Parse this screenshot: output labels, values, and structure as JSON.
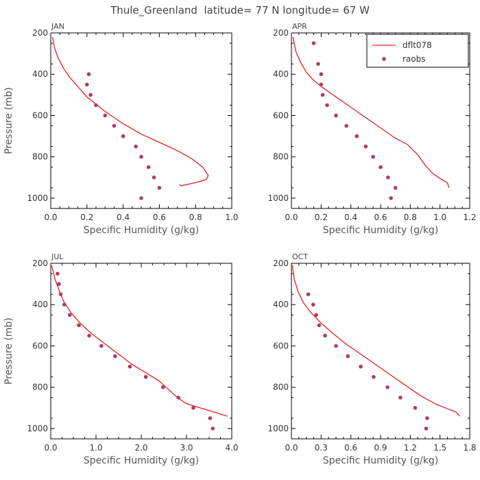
{
  "page_title": "Thule_Greenland  latitude= 77 N longitude= 67 W",
  "colors": {
    "model_line": "#e0201b",
    "obs_marker": "#b03a64",
    "frame": "#000000"
  },
  "legend": {
    "model": "dflt078",
    "obs": "raobs"
  },
  "chart_data": [
    {
      "type": "line",
      "title": "JAN",
      "xlabel": "Specific Humidity (g/kg)",
      "ylabel": "Pressure (mb)",
      "xlim": [
        0,
        1.0
      ],
      "ylim": [
        200,
        1050
      ],
      "y_inverted": true,
      "xticks": [
        0.0,
        0.2,
        0.4,
        0.6,
        0.8,
        1.0
      ],
      "xtick_labels": [
        "0.0",
        "0.2",
        "0.4",
        "0.6",
        "0.8",
        "1.0"
      ],
      "yticks": [
        200,
        400,
        600,
        800,
        1000
      ],
      "ytick_labels": [
        "200",
        "400",
        "600",
        "800",
        "1000"
      ],
      "series": [
        {
          "name": "dflt078",
          "kind": "line",
          "x": [
            0.01,
            0.02,
            0.04,
            0.07,
            0.1,
            0.15,
            0.2,
            0.3,
            0.4,
            0.5,
            0.6,
            0.7,
            0.78,
            0.84,
            0.87,
            0.86,
            0.8,
            0.72,
            0.71
          ],
          "y": [
            220,
            270,
            320,
            370,
            410,
            460,
            510,
            580,
            640,
            690,
            730,
            770,
            810,
            850,
            890,
            910,
            925,
            940,
            935
          ]
        },
        {
          "name": "raobs",
          "kind": "scatter",
          "x": [
            0.21,
            0.2,
            0.22,
            0.25,
            0.3,
            0.35,
            0.4,
            0.47,
            0.5,
            0.54,
            0.57,
            0.6,
            0.5
          ],
          "y": [
            400,
            450,
            500,
            550,
            600,
            650,
            700,
            750,
            800,
            850,
            900,
            950,
            1000
          ]
        }
      ]
    },
    {
      "type": "line",
      "title": "APR",
      "xlabel": "Specific Humidity (g/kg)",
      "ylabel": "",
      "xlim": [
        0,
        1.2
      ],
      "ylim": [
        200,
        1050
      ],
      "y_inverted": true,
      "xticks": [
        0.0,
        0.2,
        0.4,
        0.6,
        0.8,
        1.0,
        1.2
      ],
      "xtick_labels": [
        "0.0",
        "0.2",
        "0.4",
        "0.6",
        "0.8",
        "1.0",
        "1.2"
      ],
      "yticks": [
        200,
        400,
        600,
        800,
        1000
      ],
      "ytick_labels": [
        "200",
        "400",
        "600",
        "800",
        "1000"
      ],
      "legend_position": "top-right",
      "series": [
        {
          "name": "dflt078",
          "kind": "line",
          "x": [
            0.01,
            0.03,
            0.06,
            0.1,
            0.15,
            0.22,
            0.3,
            0.4,
            0.5,
            0.6,
            0.7,
            0.78,
            0.85,
            0.9,
            0.95,
            1.0,
            1.05,
            1.06
          ],
          "y": [
            220,
            290,
            340,
            390,
            430,
            470,
            510,
            560,
            610,
            660,
            710,
            740,
            790,
            840,
            880,
            905,
            925,
            950
          ]
        },
        {
          "name": "raobs",
          "kind": "scatter",
          "x": [
            0.15,
            0.18,
            0.2,
            0.2,
            0.21,
            0.24,
            0.3,
            0.37,
            0.44,
            0.5,
            0.55,
            0.6,
            0.65,
            0.7,
            0.67
          ],
          "y": [
            250,
            350,
            400,
            450,
            500,
            550,
            600,
            650,
            700,
            750,
            800,
            850,
            900,
            950,
            1000
          ]
        }
      ]
    },
    {
      "type": "line",
      "title": "JUL",
      "xlabel": "Specific Humidity (g/kg)",
      "ylabel": "Pressure (mb)",
      "xlim": [
        0,
        4.0
      ],
      "ylim": [
        200,
        1050
      ],
      "y_inverted": true,
      "xticks": [
        0.0,
        1.0,
        2.0,
        3.0,
        4.0
      ],
      "xtick_labels": [
        "0.0",
        "1.0",
        "2.0",
        "3.0",
        "4.0"
      ],
      "yticks": [
        200,
        400,
        600,
        800,
        1000
      ],
      "ytick_labels": [
        "200",
        "400",
        "600",
        "800",
        "1000"
      ],
      "series": [
        {
          "name": "dflt078",
          "kind": "line",
          "x": [
            0.02,
            0.1,
            0.2,
            0.3,
            0.45,
            0.65,
            0.9,
            1.2,
            1.5,
            1.8,
            2.1,
            2.4,
            2.6,
            2.8,
            3.0,
            3.3,
            3.6,
            3.9
          ],
          "y": [
            210,
            280,
            340,
            390,
            440,
            490,
            540,
            590,
            640,
            690,
            730,
            770,
            810,
            850,
            880,
            900,
            920,
            940
          ]
        },
        {
          "name": "raobs",
          "kind": "scatter",
          "x": [
            0.15,
            0.18,
            0.22,
            0.3,
            0.42,
            0.62,
            0.85,
            1.12,
            1.42,
            1.75,
            2.1,
            2.48,
            2.82,
            3.15,
            3.52,
            3.58
          ],
          "y": [
            250,
            300,
            350,
            400,
            450,
            500,
            550,
            600,
            650,
            700,
            750,
            800,
            850,
            900,
            950,
            1000
          ]
        }
      ]
    },
    {
      "type": "line",
      "title": "OCT",
      "xlabel": "Specific Humidity (g/kg)",
      "ylabel": "",
      "xlim": [
        0,
        1.8
      ],
      "ylim": [
        200,
        1050
      ],
      "y_inverted": true,
      "xticks": [
        0.0,
        0.3,
        0.6,
        0.9,
        1.2,
        1.5,
        1.8
      ],
      "xtick_labels": [
        "0.0",
        "0.3",
        "0.6",
        "0.9",
        "1.2",
        "1.5",
        "1.8"
      ],
      "yticks": [
        200,
        400,
        600,
        800,
        1000
      ],
      "ytick_labels": [
        "200",
        "400",
        "600",
        "800",
        "1000"
      ],
      "series": [
        {
          "name": "dflt078",
          "kind": "line",
          "x": [
            0.01,
            0.03,
            0.07,
            0.12,
            0.2,
            0.3,
            0.42,
            0.55,
            0.7,
            0.85,
            1.0,
            1.15,
            1.3,
            1.45,
            1.58,
            1.66,
            1.7
          ],
          "y": [
            210,
            280,
            340,
            390,
            440,
            490,
            540,
            590,
            640,
            690,
            740,
            790,
            840,
            880,
            905,
            920,
            940
          ]
        },
        {
          "name": "raobs",
          "kind": "scatter",
          "x": [
            0.17,
            0.22,
            0.25,
            0.28,
            0.34,
            0.45,
            0.57,
            0.7,
            0.83,
            0.97,
            1.1,
            1.25,
            1.37,
            1.36
          ],
          "y": [
            350,
            400,
            450,
            500,
            550,
            600,
            650,
            700,
            750,
            800,
            850,
            900,
            950,
            1000
          ]
        }
      ]
    }
  ]
}
